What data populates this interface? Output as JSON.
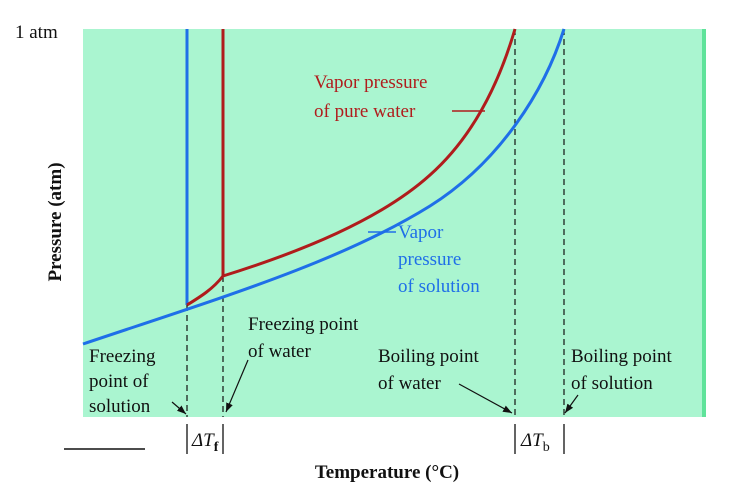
{
  "figure": {
    "top_label": "1 atm",
    "y_axis_label": "Pressure (atm)",
    "x_axis_label": "Temperature (°C)",
    "delta_tf": {
      "prefix": "ΔT",
      "subscript": "f"
    },
    "delta_tb": {
      "prefix": "ΔT",
      "subscript": "b"
    }
  },
  "labels": {
    "pure_water_curve": [
      "Vapor pressure",
      "of pure water"
    ],
    "solution_curve": [
      "Vapor",
      "pressure",
      "of solution"
    ],
    "fp_water": [
      "Freezing point",
      "of water"
    ],
    "fp_solution": [
      "Freezing",
      "point of",
      "solution"
    ],
    "bp_water": [
      "Boiling point",
      "of water"
    ],
    "bp_solution": [
      "Boiling point",
      "of solution"
    ]
  },
  "colors": {
    "background": "#aaf5d0",
    "right_edge": "#5fe39a",
    "pure_water": "#b01c1c",
    "solution": "#1f6fe8",
    "text_black": "#111111"
  }
}
